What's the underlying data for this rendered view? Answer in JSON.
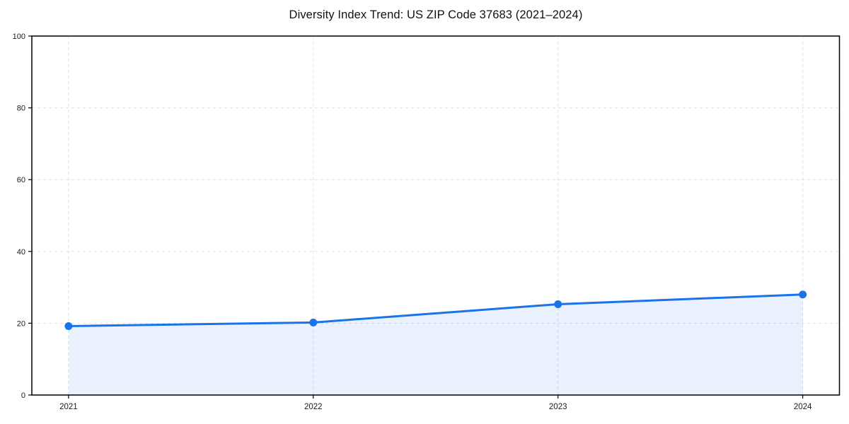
{
  "chart_data": {
    "type": "area",
    "title": "Diversity Index Trend: US ZIP Code 37683 (2021–2024)",
    "xlabel": "",
    "ylabel": "",
    "categories": [
      "2021",
      "2022",
      "2023",
      "2024"
    ],
    "series": [
      {
        "name": "Diversity Index",
        "values": [
          19.2,
          20.2,
          25.3,
          28.0
        ]
      }
    ],
    "ylim": [
      0,
      100
    ],
    "yticks": [
      0,
      20,
      40,
      60,
      80,
      100
    ],
    "grid": true,
    "grid_style": "dashed",
    "legend": "none",
    "x_margin_fraction": 0.05
  },
  "colors": {
    "line": "#1a73e8",
    "marker": "#1a73e8",
    "fill": "#1a73e8",
    "fill_opacity": 0.1,
    "grid": "#e0e0e0",
    "spine": "#000000",
    "tick_text": "#1a1a1a",
    "title_text": "#111111",
    "background": "#ffffff"
  },
  "layout_values": {
    "marker_radius": 5.5,
    "line_width": 3,
    "spine_width": 1.5,
    "tick_length": 5
  }
}
